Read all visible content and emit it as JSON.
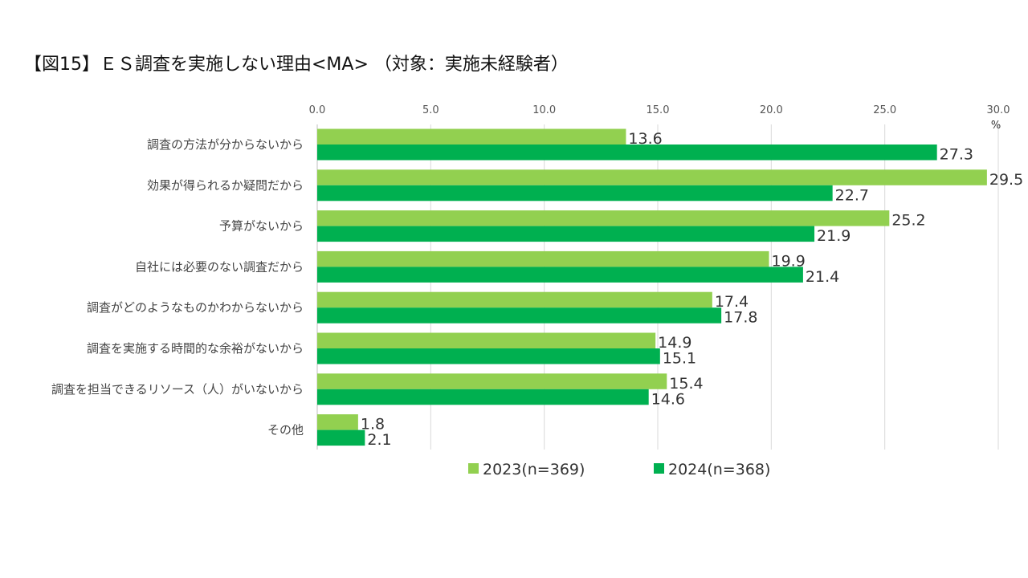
{
  "title": "【図15】ＥＳ調査を実施しない理由<MA> （対象：実施未経験者）",
  "chart_data": {
    "type": "bar",
    "orientation": "horizontal",
    "title": "【図15】ＥＳ調査を実施しない理由<MA> （対象：実施未経験者）",
    "unit": "%",
    "xlim": [
      0,
      30
    ],
    "ticks": [
      "0.0",
      "5.0",
      "10.0",
      "15.0",
      "20.0",
      "25.0",
      "30.0"
    ],
    "grid": true,
    "legend_position": "bottom",
    "categories": [
      "調査の方法が分からないから",
      "効果が得られるか疑問だから",
      "予算がないから",
      "自社には必要のない調査だから",
      "調査がどのようなものかわからないから",
      "調査を実施する時間的な余裕がないから",
      "調査を担当できるリソース（人）がいないから",
      "その他"
    ],
    "series": [
      {
        "name": "2023(n=369)",
        "color": "#92d050",
        "values": [
          13.6,
          29.5,
          25.2,
          19.9,
          17.4,
          14.9,
          15.4,
          1.8
        ]
      },
      {
        "name": "2024(n=368)",
        "color": "#00b050",
        "values": [
          27.3,
          22.7,
          21.9,
          21.4,
          17.8,
          15.1,
          14.6,
          2.1
        ]
      }
    ]
  }
}
